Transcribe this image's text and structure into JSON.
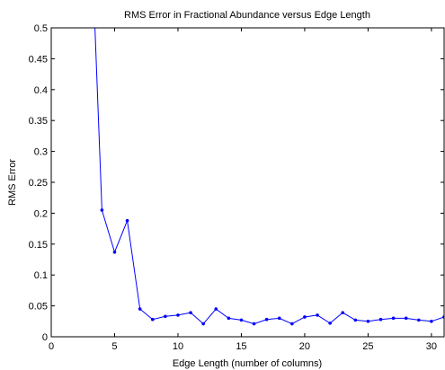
{
  "chart_data": {
    "type": "line",
    "title": "RMS Error in Fractional Abundance versus Edge Length",
    "xlabel": "Edge Length (number of columns)",
    "ylabel": "RMS Error",
    "xlim": [
      0,
      31
    ],
    "ylim": [
      0,
      0.5
    ],
    "xticks": [
      0,
      5,
      10,
      15,
      20,
      25,
      30
    ],
    "xtick_labels": [
      "0",
      "5",
      "10",
      "15",
      "20",
      "25",
      "30"
    ],
    "yticks": [
      0,
      0.05,
      0.1,
      0.15,
      0.2,
      0.25,
      0.3,
      0.35,
      0.4,
      0.45,
      0.5
    ],
    "ytick_labels": [
      "0",
      "0.05",
      "0.1",
      "0.15",
      "0.2",
      "0.25",
      "0.3",
      "0.35",
      "0.4",
      "0.45",
      "0.5"
    ],
    "grid": false,
    "line_color": "#0000ff",
    "series": [
      {
        "x": [
          3,
          4,
          5,
          6,
          7,
          8,
          9,
          10,
          11,
          12,
          13,
          14,
          15,
          16,
          17,
          18,
          19,
          20,
          21,
          22,
          23,
          24,
          25,
          26,
          27,
          28,
          29,
          30,
          31
        ],
        "y": [
          0.74,
          0.205,
          0.137,
          0.188,
          0.045,
          0.028,
          0.033,
          0.035,
          0.039,
          0.021,
          0.045,
          0.03,
          0.027,
          0.021,
          0.028,
          0.03,
          0.021,
          0.032,
          0.035,
          0.022,
          0.039,
          0.027,
          0.025,
          0.028,
          0.03,
          0.03,
          0.027,
          0.025,
          0.032
        ]
      }
    ]
  }
}
